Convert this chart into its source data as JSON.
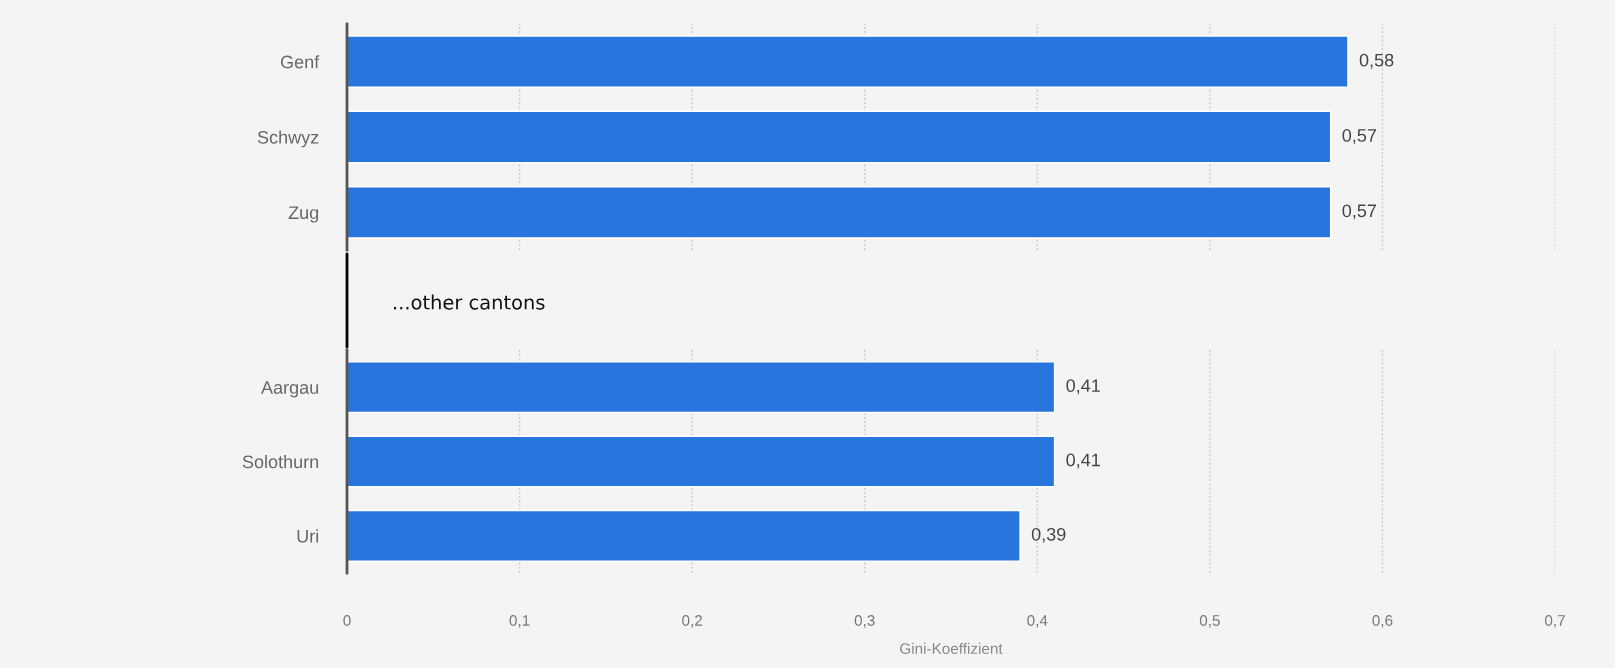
{
  "chart_data": [
    {
      "type": "bar",
      "orientation": "horizontal",
      "categories": [
        "Genf",
        "Schwyz",
        "Zug"
      ],
      "values": [
        0.58,
        0.57,
        0.57
      ],
      "value_labels": [
        "0,58",
        "0,57",
        "0,57"
      ],
      "color": "#2876dd",
      "xlim": [
        0,
        0.7
      ],
      "xticks": [
        0,
        0.1,
        0.2,
        0.3,
        0.4,
        0.5,
        0.6,
        0.7
      ],
      "grid": "x",
      "tick_labels": "y",
      "annotations": [
        "...other cantons"
      ]
    },
    {
      "type": "bar",
      "orientation": "horizontal",
      "categories": [
        "Aargau",
        "Solothurn",
        "Uri"
      ],
      "values": [
        0.41,
        0.41,
        0.39
      ],
      "value_labels": [
        "0,41",
        "0,41",
        "0,39"
      ],
      "color": "#2876dd",
      "xlim": [
        0,
        0.7
      ],
      "xticks": [
        0,
        {
          "value": 0.1,
          "label": "0,1"
        },
        {
          "value": 0.2,
          "label": "0,2"
        },
        {
          "value": 0.3,
          "label": "0,3"
        },
        {
          "value": 0.4,
          "label": "0,4"
        },
        {
          "value": 0.5,
          "label": "0,5"
        },
        {
          "value": 0.6,
          "label": "0,6"
        },
        {
          "value": 0.7,
          "label": "0,7"
        }
      ],
      "xlabel": "Gini-Koeffizient",
      "grid": "x"
    }
  ]
}
